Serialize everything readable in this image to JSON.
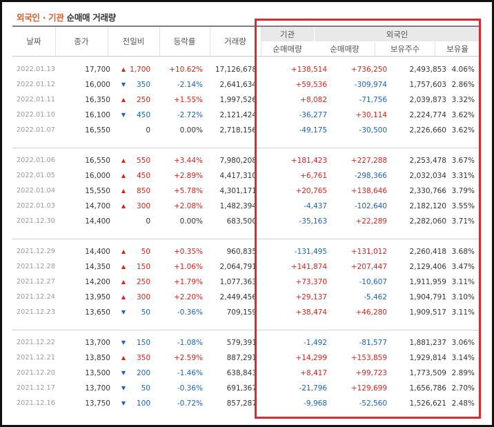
{
  "title": {
    "foreign": "외국인",
    "sep": " · ",
    "inst": "기관",
    "rest": " 순매매 거래량"
  },
  "headers": {
    "date": "날짜",
    "close": "종가",
    "diff": "전일비",
    "rate": "등락률",
    "volume": "거래량",
    "institution": "기관",
    "foreigner": "외국인",
    "inst_net": "순매매량",
    "foreign_net": "순매매량",
    "foreign_hold": "보유주수",
    "foreign_ratio": "보유율"
  },
  "colors": {
    "up": "#d7261d",
    "down": "#1a63b8",
    "highlight": "#e3262d"
  },
  "groups": [
    [
      {
        "date": "2022.01.13",
        "close": "17,700",
        "dir": "up",
        "diff": "1,700",
        "rate": "+10.62%",
        "volume": "17,126,678",
        "inst": "+138,514",
        "fnet": "+736,250",
        "fhold": "2,493,853",
        "fratio": "4.06%"
      },
      {
        "date": "2022.01.12",
        "close": "16,000",
        "dir": "down",
        "diff": "350",
        "rate": "-2.14%",
        "volume": "2,641,634",
        "inst": "+59,536",
        "fnet": "-309,974",
        "fhold": "1,757,603",
        "fratio": "2.86%"
      },
      {
        "date": "2022.01.11",
        "close": "16,350",
        "dir": "up",
        "diff": "250",
        "rate": "+1.55%",
        "volume": "1,997,526",
        "inst": "+8,082",
        "fnet": "-71,756",
        "fhold": "2,039,873",
        "fratio": "3.32%"
      },
      {
        "date": "2022.01.10",
        "close": "16,100",
        "dir": "down",
        "diff": "450",
        "rate": "-2.72%",
        "volume": "2,121,424",
        "inst": "-36,277",
        "fnet": "+30,114",
        "fhold": "2,224,774",
        "fratio": "3.62%"
      },
      {
        "date": "2022.01.07",
        "close": "16,550",
        "dir": "flat",
        "diff": "0",
        "rate": "0.00%",
        "volume": "2,718,156",
        "inst": "-49,175",
        "fnet": "-30,500",
        "fhold": "2,226,660",
        "fratio": "3.62%"
      }
    ],
    [
      {
        "date": "2022.01.06",
        "close": "16,550",
        "dir": "up",
        "diff": "550",
        "rate": "+3.44%",
        "volume": "7,980,208",
        "inst": "+181,423",
        "fnet": "+227,288",
        "fhold": "2,253,478",
        "fratio": "3.67%"
      },
      {
        "date": "2022.01.05",
        "close": "16,000",
        "dir": "up",
        "diff": "450",
        "rate": "+2.89%",
        "volume": "4,417,310",
        "inst": "+6,761",
        "fnet": "-298,366",
        "fhold": "2,032,034",
        "fratio": "3.31%"
      },
      {
        "date": "2022.01.04",
        "close": "15,550",
        "dir": "up",
        "diff": "850",
        "rate": "+5.78%",
        "volume": "4,301,171",
        "inst": "+20,765",
        "fnet": "+138,646",
        "fhold": "2,330,766",
        "fratio": "3.79%"
      },
      {
        "date": "2022.01.03",
        "close": "14,700",
        "dir": "up",
        "diff": "300",
        "rate": "+2.08%",
        "volume": "1,482,394",
        "inst": "-4,437",
        "fnet": "-102,640",
        "fhold": "2,182,120",
        "fratio": "3.55%"
      },
      {
        "date": "2021.12.30",
        "close": "14,400",
        "dir": "flat",
        "diff": "0",
        "rate": "0.00%",
        "volume": "683,500",
        "inst": "-35,163",
        "fnet": "+22,289",
        "fhold": "2,282,060",
        "fratio": "3.71%"
      }
    ],
    [
      {
        "date": "2021.12.29",
        "close": "14,400",
        "dir": "up",
        "diff": "50",
        "rate": "+0.35%",
        "volume": "960,835",
        "inst": "-131,495",
        "fnet": "+131,012",
        "fhold": "2,260,418",
        "fratio": "3.68%"
      },
      {
        "date": "2021.12.28",
        "close": "14,350",
        "dir": "up",
        "diff": "150",
        "rate": "+1.06%",
        "volume": "2,064,791",
        "inst": "+141,874",
        "fnet": "+207,447",
        "fhold": "2,129,406",
        "fratio": "3.47%"
      },
      {
        "date": "2021.12.27",
        "close": "14,200",
        "dir": "up",
        "diff": "250",
        "rate": "+1.79%",
        "volume": "1,077,363",
        "inst": "+73,370",
        "fnet": "-10,607",
        "fhold": "1,911,959",
        "fratio": "3.11%"
      },
      {
        "date": "2021.12.24",
        "close": "13,950",
        "dir": "up",
        "diff": "300",
        "rate": "+2.20%",
        "volume": "2,449,456",
        "inst": "+29,137",
        "fnet": "-5,462",
        "fhold": "1,904,791",
        "fratio": "3.10%"
      },
      {
        "date": "2021.12.23",
        "close": "13,650",
        "dir": "down",
        "diff": "50",
        "rate": "-0.36%",
        "volume": "709,159",
        "inst": "+38,474",
        "fnet": "+46,280",
        "fhold": "1,909,517",
        "fratio": "3.11%"
      }
    ],
    [
      {
        "date": "2021.12.22",
        "close": "13,700",
        "dir": "down",
        "diff": "150",
        "rate": "-1.08%",
        "volume": "579,391",
        "inst": "-1,492",
        "fnet": "-81,577",
        "fhold": "1,881,237",
        "fratio": "3.06%"
      },
      {
        "date": "2021.12.21",
        "close": "13,850",
        "dir": "up",
        "diff": "350",
        "rate": "+2.59%",
        "volume": "887,291",
        "inst": "+14,299",
        "fnet": "+153,859",
        "fhold": "1,929,814",
        "fratio": "3.14%"
      },
      {
        "date": "2021.12.20",
        "close": "13,500",
        "dir": "down",
        "diff": "200",
        "rate": "-1.46%",
        "volume": "638,843",
        "inst": "+8,417",
        "fnet": "+99,723",
        "fhold": "1,773,509",
        "fratio": "2.89%"
      },
      {
        "date": "2021.12.17",
        "close": "13,700",
        "dir": "down",
        "diff": "50",
        "rate": "-0.36%",
        "volume": "691,367",
        "inst": "-21,796",
        "fnet": "+129,699",
        "fhold": "1,656,786",
        "fratio": "2.70%"
      },
      {
        "date": "2021.12.16",
        "close": "13,750",
        "dir": "down",
        "diff": "100",
        "rate": "-0.72%",
        "volume": "857,287",
        "inst": "-9,968",
        "fnet": "-52,560",
        "fhold": "1,526,621",
        "fratio": "2.48%"
      }
    ]
  ]
}
